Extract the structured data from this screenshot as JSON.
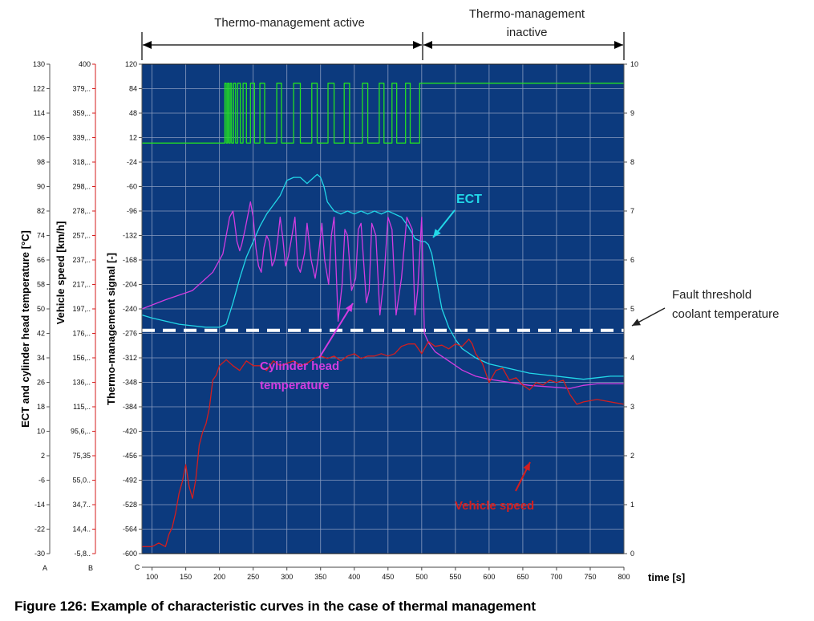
{
  "chart_data": {
    "type": "line",
    "x_range": [
      85,
      800
    ],
    "x_ticks": [
      "100",
      "150",
      "200",
      "250",
      "300",
      "350",
      "400",
      "450",
      "500",
      "550",
      "600",
      "650",
      "700",
      "750",
      "800"
    ],
    "x_label": "time [s]",
    "axis_letters": [
      "A",
      "B",
      "C"
    ],
    "axis_temp": {
      "label": "ECT and cylinder head temperature [°C]",
      "range": [
        -30,
        130
      ],
      "ticks": [
        "130",
        "122",
        "114",
        "106",
        "98",
        "90",
        "82",
        "74",
        "66",
        "58",
        "50",
        "42",
        "34",
        "26",
        "18",
        "10",
        "2",
        "-6",
        "-14",
        "-22",
        "-30"
      ]
    },
    "axis_speed": {
      "label": "Vehicle speed [km/h]",
      "range": [
        -5.8,
        400
      ],
      "ticks": [
        "400",
        "379,..",
        "359,..",
        "339,..",
        "318,..",
        "298,..",
        "278,..",
        "257,..",
        "237,..",
        "217,..",
        "197,..",
        "176,..",
        "156,..",
        "136,..",
        "115,..",
        "95,6,..",
        "75,35",
        "55,0..",
        "34,7..",
        "14,4..",
        "-5,8.."
      ]
    },
    "axis_signal": {
      "label": "Thermo-management signal [-]",
      "range": [
        -600,
        120
      ],
      "ticks": [
        "120",
        "84",
        "48",
        "12",
        "-24",
        "-60",
        "-96",
        "-132",
        "-168",
        "-204",
        "-240",
        "-276",
        "-312",
        "-348",
        "-384",
        "-420",
        "-456",
        "-492",
        "-528",
        "-564",
        "-600"
      ]
    },
    "axis_right": {
      "range": [
        0,
        10
      ],
      "ticks": [
        "10",
        "9",
        "8",
        "7",
        "6",
        "5",
        "4",
        "3",
        "2",
        "1",
        "0"
      ]
    },
    "headers": {
      "active": "Thermo-management active",
      "inactive_line1": "Thermo-management",
      "inactive_line2": "inactive"
    },
    "annotations": {
      "ect": "ECT",
      "cyl_line1": "Cylinder head",
      "cyl_line2": "temperature",
      "speed": "Vehicle speed",
      "fault_line1": "Fault threshold",
      "fault_line2": "coolant temperature"
    },
    "fault_threshold_temp": 43,
    "colors": {
      "plot_bg": "#0C3A7E",
      "grid": "#8A9CC0",
      "signal": "#22E022",
      "ect": "#22D8E8",
      "cylinder_head": "#D23CE0",
      "vehicle_speed": "#D41E1E",
      "threshold": "#FFFFFF"
    },
    "series": [
      {
        "name": "Thermo-management signal",
        "axis": "signal",
        "color": "#22E022",
        "x": [
          85,
          208,
          208,
          210,
          210,
          212,
          212,
          214,
          214,
          216,
          216,
          218,
          218,
          221,
          221,
          224,
          224,
          227,
          227,
          231,
          231,
          235,
          235,
          240,
          240,
          246,
          246,
          252,
          252,
          260,
          260,
          267,
          267,
          285,
          285,
          292,
          292,
          310,
          310,
          320,
          320,
          337,
          337,
          345,
          345,
          361,
          361,
          370,
          370,
          385,
          385,
          393,
          393,
          412,
          412,
          420,
          420,
          437,
          437,
          444,
          444,
          456,
          456,
          463,
          463,
          476,
          476,
          483,
          483,
          497,
          497,
          505,
          505,
          800
        ],
        "y": [
          4,
          4,
          92,
          92,
          4,
          4,
          92,
          92,
          4,
          4,
          92,
          92,
          4,
          4,
          92,
          92,
          4,
          4,
          92,
          92,
          4,
          4,
          92,
          92,
          4,
          4,
          92,
          92,
          4,
          4,
          92,
          92,
          4,
          4,
          92,
          92,
          4,
          4,
          92,
          92,
          4,
          4,
          92,
          92,
          4,
          4,
          92,
          92,
          4,
          4,
          92,
          92,
          4,
          4,
          92,
          92,
          4,
          4,
          92,
          92,
          4,
          4,
          92,
          92,
          4,
          4,
          92,
          92,
          4,
          4,
          92,
          92,
          92,
          92
        ]
      },
      {
        "name": "ECT",
        "axis": "temp",
        "color": "#22D8E8",
        "x": [
          85,
          100,
          120,
          140,
          160,
          180,
          200,
          210,
          220,
          230,
          240,
          250,
          260,
          270,
          280,
          290,
          300,
          310,
          320,
          330,
          340,
          345,
          350,
          355,
          360,
          370,
          380,
          390,
          400,
          410,
          420,
          430,
          440,
          450,
          460,
          470,
          480,
          490,
          500,
          505,
          510,
          515,
          520,
          525,
          530,
          535,
          540,
          550,
          560,
          580,
          600,
          620,
          640,
          660,
          680,
          700,
          720,
          740,
          760,
          780,
          800
        ],
        "y": [
          48,
          47,
          46,
          45,
          44.5,
          44,
          44,
          45,
          52,
          60,
          67,
          72,
          77,
          81,
          84,
          87,
          92,
          93,
          93,
          91,
          93,
          94,
          93,
          90,
          85,
          82,
          81,
          82,
          81,
          82,
          81,
          82,
          81,
          82,
          81,
          80,
          77,
          73,
          72,
          72,
          71,
          68,
          62,
          56,
          50,
          47,
          44,
          40,
          37,
          34,
          32,
          31,
          30,
          29,
          28.5,
          28,
          27.5,
          27,
          27.5,
          28,
          28
        ]
      },
      {
        "name": "Cylinder head temperature",
        "axis": "temp",
        "color": "#D23CE0",
        "x": [
          85,
          120,
          160,
          190,
          205,
          210,
          215,
          220,
          222,
          226,
          230,
          233,
          238,
          246,
          250,
          254,
          258,
          262,
          266,
          270,
          274,
          278,
          282,
          286,
          290,
          294,
          298,
          302,
          306,
          312,
          316,
          320,
          326,
          330,
          336,
          342,
          346,
          352,
          356,
          362,
          366,
          370,
          376,
          382,
          386,
          390,
          396,
          402,
          406,
          410,
          418,
          422,
          426,
          432,
          438,
          444,
          450,
          456,
          462,
          470,
          478,
          486,
          490,
          494,
          500,
          504,
          510,
          520,
          540,
          560,
          580,
          600,
          630,
          660,
          690,
          720,
          740,
          760,
          800
        ],
        "y": [
          50,
          53,
          56,
          62,
          68,
          74,
          80,
          82,
          79,
          72,
          69,
          71,
          76,
          85,
          80,
          70,
          64,
          62,
          70,
          74,
          72,
          64,
          66,
          72,
          80,
          73,
          64,
          67,
          72,
          80,
          64,
          62,
          68,
          78,
          66,
          60,
          66,
          78,
          66,
          58,
          74,
          80,
          46,
          58,
          76,
          74,
          56,
          60,
          76,
          78,
          52,
          56,
          78,
          74,
          48,
          60,
          80,
          76,
          48,
          60,
          80,
          76,
          48,
          56,
          80,
          42,
          39,
          36,
          33,
          30,
          28,
          27,
          26,
          25,
          24.5,
          24,
          25,
          25.5,
          25.5
        ]
      },
      {
        "name": "Vehicle speed",
        "axis": "speed",
        "color": "#D41E1E",
        "x": [
          85,
          100,
          110,
          120,
          125,
          130,
          135,
          140,
          145,
          150,
          155,
          160,
          165,
          170,
          175,
          180,
          185,
          190,
          195,
          200,
          210,
          220,
          230,
          240,
          250,
          260,
          270,
          280,
          290,
          300,
          310,
          320,
          330,
          340,
          350,
          360,
          370,
          380,
          390,
          400,
          410,
          420,
          430,
          440,
          450,
          460,
          470,
          480,
          490,
          500,
          510,
          520,
          530,
          540,
          550,
          560,
          570,
          575,
          580,
          590,
          600,
          610,
          620,
          630,
          640,
          650,
          660,
          670,
          680,
          690,
          700,
          710,
          720,
          730,
          740,
          760,
          780,
          800
        ],
        "y": [
          0,
          0,
          3,
          0,
          10,
          16,
          28,
          44,
          54,
          68,
          50,
          40,
          56,
          84,
          95,
          102,
          115,
          138,
          142,
          150,
          155,
          150,
          146,
          154,
          150,
          150,
          146,
          154,
          150,
          152,
          154,
          150,
          152,
          156,
          158,
          156,
          158,
          154,
          158,
          160,
          156,
          158,
          158,
          160,
          158,
          160,
          166,
          168,
          168,
          160,
          170,
          166,
          167,
          164,
          168,
          166,
          172,
          168,
          160,
          152,
          136,
          146,
          148,
          138,
          140,
          134,
          130,
          136,
          134,
          138,
          136,
          138,
          126,
          118,
          120,
          122,
          120,
          118
        ]
      }
    ]
  }
}
